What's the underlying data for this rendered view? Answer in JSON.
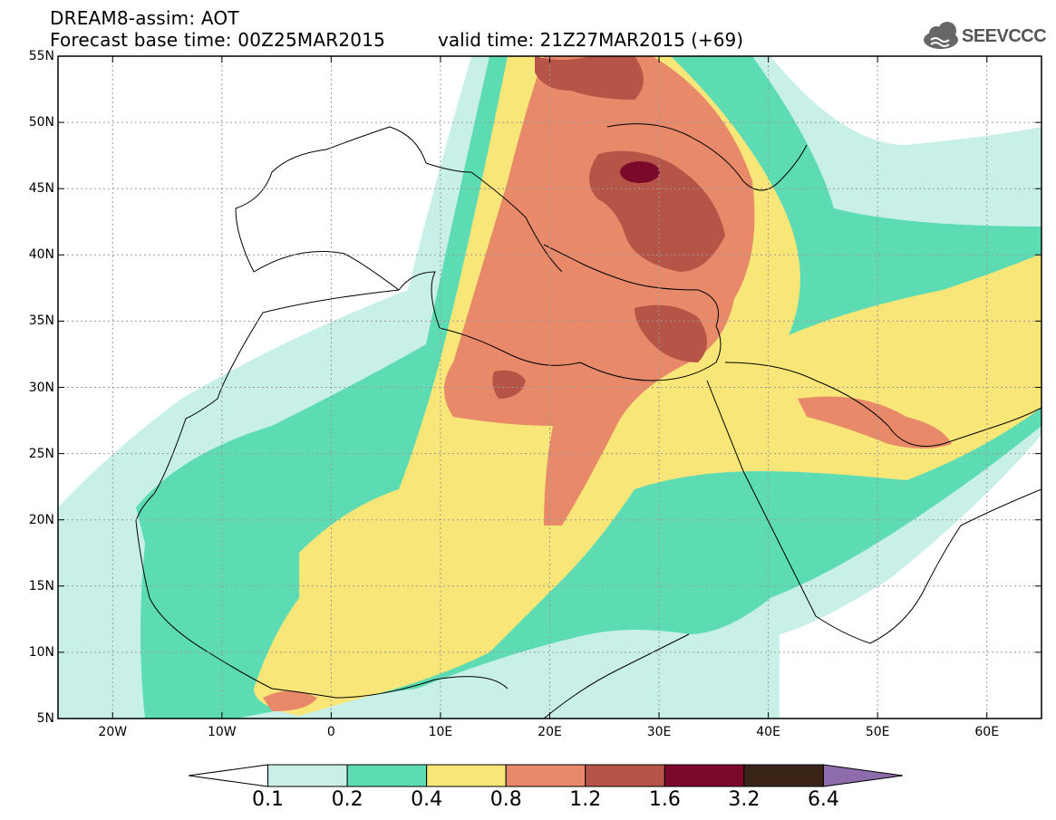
{
  "header": {
    "title": "DREAM8-assim: AOT",
    "forecast_base": "Forecast base time: 00Z25MAR2015",
    "valid_time": "valid time: 21Z27MAR2015 (+69)",
    "logo_text": "SEEVCCC"
  },
  "map": {
    "lon_range": [
      -25,
      65
    ],
    "lat_range": [
      5,
      55
    ],
    "lon_ticks": [
      {
        "value": -20,
        "label": "20W"
      },
      {
        "value": -10,
        "label": "10W"
      },
      {
        "value": 0,
        "label": "0"
      },
      {
        "value": 10,
        "label": "10E"
      },
      {
        "value": 20,
        "label": "20E"
      },
      {
        "value": 30,
        "label": "30E"
      },
      {
        "value": 40,
        "label": "40E"
      },
      {
        "value": 50,
        "label": "50E"
      },
      {
        "value": 60,
        "label": "60E"
      }
    ],
    "lat_ticks": [
      {
        "value": 55,
        "label": "55N"
      },
      {
        "value": 50,
        "label": "50N"
      },
      {
        "value": 45,
        "label": "45N"
      },
      {
        "value": 40,
        "label": "40N"
      },
      {
        "value": 35,
        "label": "35N"
      },
      {
        "value": 30,
        "label": "30N"
      },
      {
        "value": 25,
        "label": "25N"
      },
      {
        "value": 20,
        "label": "20N"
      },
      {
        "value": 15,
        "label": "15N"
      },
      {
        "value": 10,
        "label": "10N"
      },
      {
        "value": 5,
        "label": "5N"
      }
    ],
    "grid": true
  },
  "colorbar": {
    "levels": [
      "0.1",
      "0.2",
      "0.4",
      "0.8",
      "1.2",
      "1.6",
      "3.2",
      "6.4"
    ],
    "colors": [
      "#ffffff",
      "#c8f0e8",
      "#5ddcb4",
      "#f8e678",
      "#e8896a",
      "#b65448",
      "#7b0a2a",
      "#3a2418",
      "#8e6cac"
    ]
  }
}
